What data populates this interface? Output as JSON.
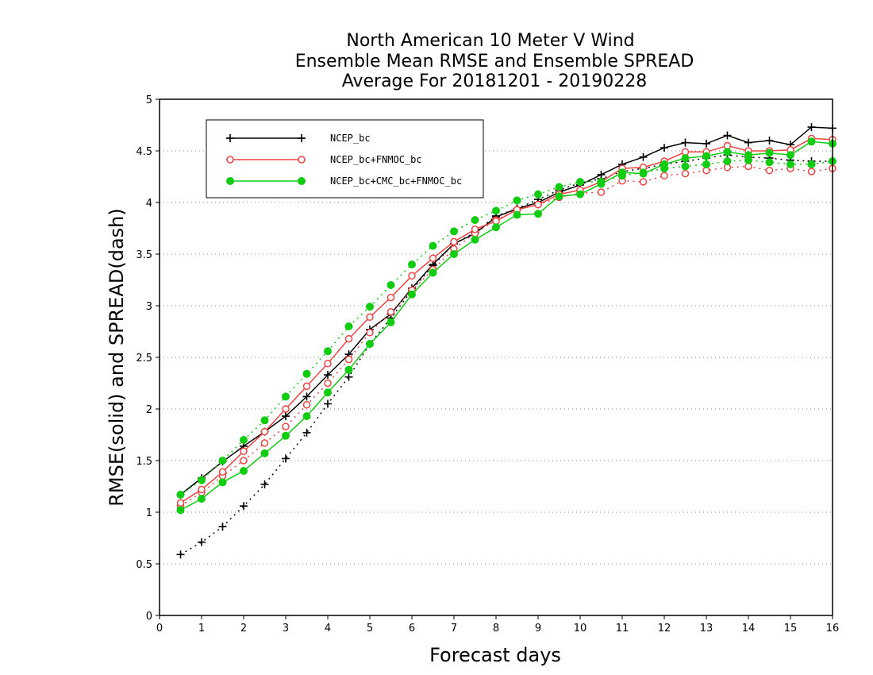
{
  "chart_data": {
    "type": "line",
    "title": [
      "North American 10 Meter V Wind",
      "Ensemble Mean RMSE and Ensemble SPREAD",
      "Average For 20181201 - 20190228"
    ],
    "xlabel": "Forecast days",
    "ylabel": "RMSE(solid) and SPREAD(dash)",
    "xlim": [
      0,
      16
    ],
    "ylim": [
      0,
      5
    ],
    "xticks": [
      "0",
      "1",
      "2",
      "3",
      "4",
      "5",
      "6",
      "7",
      "8",
      "9",
      "10",
      "11",
      "12",
      "13",
      "14",
      "15",
      "16"
    ],
    "yticks": [
      "0",
      "0.5",
      "1",
      "1.5",
      "2",
      "2.5",
      "3",
      "3.5",
      "4",
      "4.5",
      "5"
    ],
    "grid": true,
    "legend_position": "top-left",
    "x": [
      0.5,
      1,
      1.5,
      2,
      2.5,
      3,
      3.5,
      4,
      4.5,
      5,
      5.5,
      6,
      6.5,
      7,
      7.5,
      8,
      8.5,
      9,
      9.5,
      10,
      10.5,
      11,
      11.5,
      12,
      12.5,
      13,
      13.5,
      14,
      14.5,
      15,
      15.5,
      16
    ],
    "series": [
      {
        "name": "NCEP_bc",
        "color": "#000000",
        "marker": "plus",
        "rmse": [
          1.17,
          1.33,
          1.49,
          1.64,
          1.78,
          1.93,
          2.12,
          2.33,
          2.53,
          2.77,
          2.92,
          3.17,
          3.4,
          3.6,
          3.7,
          3.86,
          3.94,
          4.0,
          4.1,
          4.17,
          4.27,
          4.37,
          4.44,
          4.53,
          4.58,
          4.57,
          4.65,
          4.58,
          4.6,
          4.56,
          4.73,
          4.72
        ],
        "spread": [
          0.59,
          0.71,
          0.86,
          1.06,
          1.27,
          1.52,
          1.77,
          2.05,
          2.31,
          2.63,
          2.88,
          3.15,
          3.39,
          3.6,
          3.71,
          3.87,
          3.94,
          4.03,
          4.12,
          4.19,
          4.23,
          4.3,
          4.33,
          4.37,
          4.4,
          4.43,
          4.46,
          4.44,
          4.43,
          4.41,
          4.4,
          4.4
        ]
      },
      {
        "name": "NCEP_bc+FNMOC_bc",
        "color": "#ee4444",
        "marker": "circle-open",
        "rmse": [
          1.09,
          1.22,
          1.39,
          1.59,
          1.78,
          2.0,
          2.22,
          2.44,
          2.68,
          2.89,
          3.08,
          3.29,
          3.46,
          3.62,
          3.74,
          3.82,
          3.93,
          3.98,
          4.08,
          4.12,
          4.2,
          4.33,
          4.34,
          4.4,
          4.49,
          4.49,
          4.55,
          4.5,
          4.5,
          4.51,
          4.62,
          4.61
        ],
        "spread": [
          1.06,
          1.19,
          1.35,
          1.5,
          1.67,
          1.83,
          2.04,
          2.25,
          2.48,
          2.74,
          2.94,
          3.15,
          3.35,
          3.55,
          3.7,
          3.83,
          3.93,
          3.98,
          4.05,
          4.09,
          4.1,
          4.21,
          4.2,
          4.26,
          4.28,
          4.31,
          4.34,
          4.35,
          4.31,
          4.33,
          4.3,
          4.33
        ]
      },
      {
        "name": "NCEP_bc+CMC_bc+FNMOC_bc",
        "color": "#11cc11",
        "marker": "circle-filled",
        "rmse": [
          1.02,
          1.13,
          1.29,
          1.4,
          1.57,
          1.74,
          1.93,
          2.16,
          2.38,
          2.63,
          2.84,
          3.11,
          3.32,
          3.5,
          3.64,
          3.76,
          3.88,
          3.89,
          4.06,
          4.08,
          4.18,
          4.29,
          4.28,
          4.37,
          4.43,
          4.45,
          4.49,
          4.46,
          4.48,
          4.46,
          4.59,
          4.57
        ],
        "spread": [
          1.17,
          1.31,
          1.5,
          1.7,
          1.89,
          2.12,
          2.34,
          2.56,
          2.8,
          2.99,
          3.2,
          3.4,
          3.58,
          3.72,
          3.83,
          3.92,
          4.02,
          4.08,
          4.15,
          4.2,
          4.2,
          4.26,
          4.29,
          4.33,
          4.35,
          4.37,
          4.4,
          4.41,
          4.39,
          4.37,
          4.37,
          4.4
        ]
      }
    ]
  }
}
